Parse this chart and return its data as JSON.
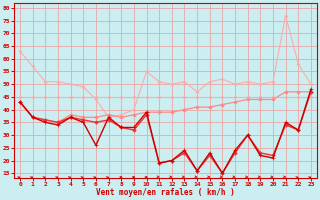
{
  "title": "",
  "xlabel": "Vent moyen/en rafales ( km/h )",
  "background_color": "#cceef0",
  "grid_color": "#e8a8a8",
  "xlim": [
    -0.5,
    23.5
  ],
  "ylim": [
    13,
    82
  ],
  "yticks": [
    15,
    20,
    25,
    30,
    35,
    40,
    45,
    50,
    55,
    60,
    65,
    70,
    75,
    80
  ],
  "xticks": [
    0,
    1,
    2,
    3,
    4,
    5,
    6,
    7,
    8,
    9,
    10,
    11,
    12,
    13,
    14,
    15,
    16,
    17,
    18,
    19,
    20,
    21,
    22,
    23
  ],
  "lines": [
    {
      "color": "#ffaaaa",
      "lw": 0.8,
      "marker": "D",
      "ms": 1.5,
      "y": [
        63,
        57,
        51,
        51,
        50,
        49,
        44,
        37,
        38,
        40,
        55,
        51,
        50,
        51,
        47,
        51,
        52,
        50,
        51,
        50,
        51,
        77,
        58,
        50
      ]
    },
    {
      "color": "#ffaaaa",
      "lw": 0.8,
      "marker": "D",
      "ms": 1.5,
      "y": [
        45,
        45,
        45,
        45,
        45,
        45,
        45,
        45,
        45,
        45,
        45,
        45,
        45,
        45,
        45,
        45,
        45,
        45,
        45,
        45,
        45,
        45,
        45,
        45
      ]
    },
    {
      "color": "#ff8888",
      "lw": 0.9,
      "marker": "D",
      "ms": 1.8,
      "y": [
        43,
        37,
        36,
        35,
        38,
        37,
        37,
        38,
        37,
        38,
        39,
        39,
        39,
        40,
        41,
        41,
        42,
        43,
        44,
        44,
        44,
        47,
        47,
        47
      ]
    },
    {
      "color": "#ee3333",
      "lw": 1.0,
      "marker": "D",
      "ms": 1.8,
      "y": [
        43,
        37,
        36,
        35,
        37,
        36,
        35,
        36,
        33,
        32,
        38,
        19,
        20,
        23,
        16,
        22,
        15,
        23,
        30,
        23,
        22,
        34,
        32,
        47
      ]
    },
    {
      "color": "#cc0000",
      "lw": 1.0,
      "marker": "+",
      "ms": 3.0,
      "y": [
        43,
        37,
        35,
        34,
        37,
        35,
        26,
        37,
        33,
        33,
        39,
        19,
        20,
        24,
        16,
        23,
        15,
        24,
        30,
        22,
        21,
        35,
        32,
        48
      ]
    }
  ],
  "wind_directions": [
    225,
    225,
    225,
    225,
    225,
    225,
    225,
    225,
    270,
    270,
    270,
    315,
    315,
    315,
    315,
    315,
    315,
    315,
    315,
    315,
    315,
    315,
    225,
    225
  ]
}
